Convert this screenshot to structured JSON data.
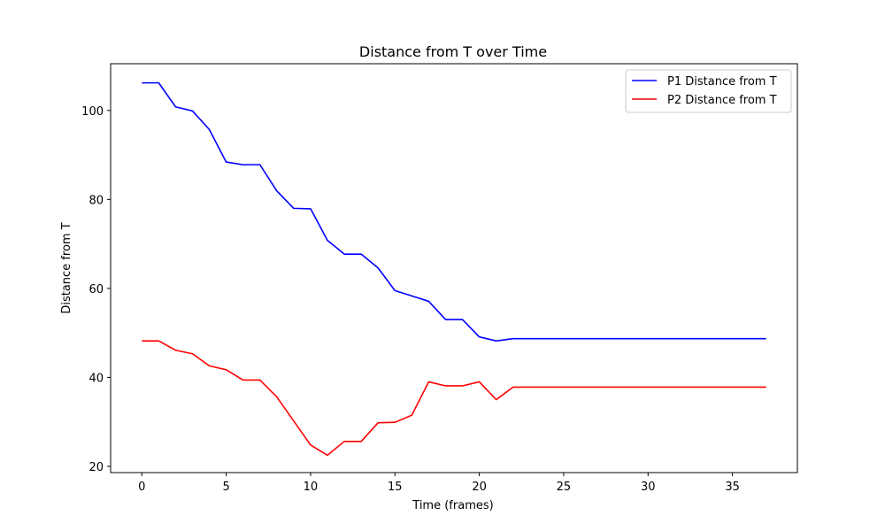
{
  "chart_data": {
    "type": "line",
    "title": "Distance from T over Time",
    "xlabel": "Time (frames)",
    "ylabel": "Distance from T",
    "xlim": [
      -1.85,
      38.85
    ],
    "ylim": [
      18.6,
      110.5
    ],
    "xticks": [
      0,
      5,
      10,
      15,
      20,
      25,
      30,
      35
    ],
    "yticks": [
      20,
      40,
      60,
      80,
      100
    ],
    "grid": false,
    "legend_position": "top-right",
    "x": [
      0,
      1,
      2,
      3,
      4,
      5,
      6,
      7,
      8,
      9,
      10,
      11,
      12,
      13,
      14,
      15,
      16,
      17,
      18,
      19,
      20,
      21,
      22,
      23,
      24,
      25,
      26,
      27,
      28,
      29,
      30,
      31,
      32,
      33,
      34,
      35,
      36,
      37
    ],
    "series": [
      {
        "name": "P1 Distance from T",
        "color": "#0000ff",
        "values": [
          106.2,
          106.2,
          100.8,
          99.9,
          95.7,
          88.4,
          87.8,
          87.8,
          81.9,
          78.0,
          77.9,
          70.8,
          67.7,
          67.7,
          64.6,
          59.5,
          58.3,
          57.1,
          53.0,
          53.0,
          49.1,
          48.2,
          48.7,
          48.7,
          48.7,
          48.7,
          48.7,
          48.7,
          48.7,
          48.7,
          48.7,
          48.7,
          48.7,
          48.7,
          48.7,
          48.7,
          48.7,
          48.7
        ]
      },
      {
        "name": "P2 Distance from T",
        "color": "#ff0000",
        "values": [
          48.2,
          48.2,
          46.1,
          45.3,
          42.6,
          41.7,
          39.4,
          39.4,
          35.6,
          30.2,
          24.8,
          22.5,
          25.6,
          25.6,
          29.8,
          29.9,
          31.5,
          39.0,
          38.1,
          38.1,
          39.0,
          35.0,
          37.8,
          37.8,
          37.8,
          37.8,
          37.8,
          37.8,
          37.8,
          37.8,
          37.8,
          37.8,
          37.8,
          37.8,
          37.8,
          37.8,
          37.8,
          37.8
        ]
      }
    ]
  }
}
